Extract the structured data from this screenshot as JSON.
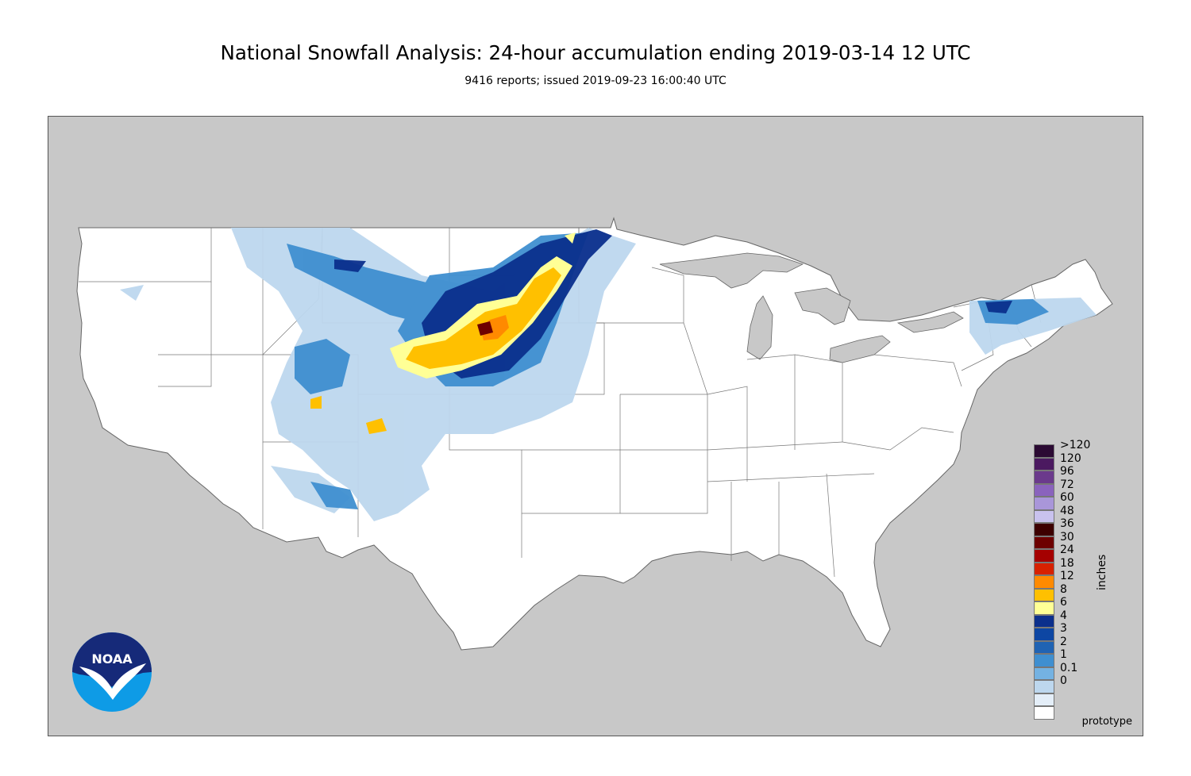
{
  "header": {
    "title": "National Snowfall Analysis: 24-hour accumulation ending 2019-03-14 12 UTC",
    "subtitle": "9416 reports; issued 2019-09-23 16:00:40 UTC"
  },
  "map": {
    "region": "Contiguous United States",
    "background_color": "#c8c8c8",
    "land_color": "#ffffff",
    "border_color": "#666666"
  },
  "legend": {
    "units": "inches",
    "entries": [
      {
        "label": ">120",
        "color": "#2b0a33"
      },
      {
        "label": "120",
        "color": "#4b1960"
      },
      {
        "label": "96",
        "color": "#6b3a8c"
      },
      {
        "label": "72",
        "color": "#8a63bd"
      },
      {
        "label": "60",
        "color": "#a996d9"
      },
      {
        "label": "48",
        "color": "#c9c2ee"
      },
      {
        "label": "36",
        "color": "#3d0000"
      },
      {
        "label": "30",
        "color": "#6d0000"
      },
      {
        "label": "24",
        "color": "#a50000"
      },
      {
        "label": "18",
        "color": "#d72100"
      },
      {
        "label": "12",
        "color": "#ff8a00"
      },
      {
        "label": "8",
        "color": "#ffc000"
      },
      {
        "label": "6",
        "color": "#ffff96"
      },
      {
        "label": "4",
        "color": "#0b2f8c"
      },
      {
        "label": "3",
        "color": "#0d46a3"
      },
      {
        "label": "2",
        "color": "#2063b3"
      },
      {
        "label": "1",
        "color": "#3f8fd0"
      },
      {
        "label": "0.1",
        "color": "#74b2e2"
      },
      {
        "label": "0",
        "color": "#bdd7ee"
      },
      {
        "label": "",
        "color": "#e4eef8"
      },
      {
        "label": "",
        "color": "#ffffff"
      }
    ]
  },
  "logo": {
    "text": "NOAA",
    "icon": "noaa-logo-icon"
  },
  "badge": {
    "text": "prototype"
  }
}
